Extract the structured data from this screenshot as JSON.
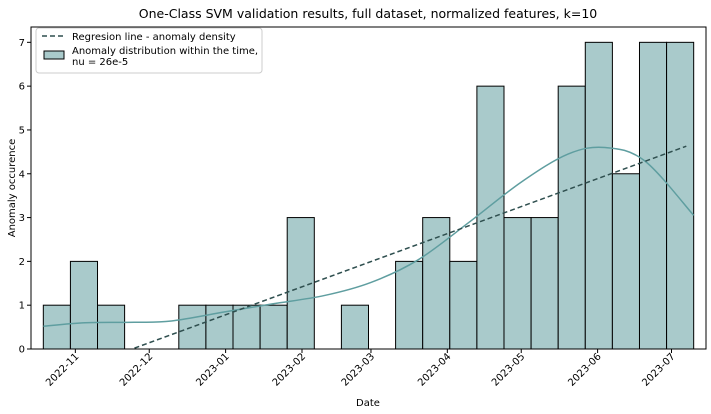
{
  "chart_data": {
    "type": "bar",
    "title": "One-Class SVM validation results, full dataset, normalized features, k=10",
    "xlabel": "Date",
    "ylabel": "Anomaly occurence",
    "ylim": [
      0,
      7.35
    ],
    "yticks": [
      0,
      1,
      2,
      3,
      4,
      5,
      6,
      7
    ],
    "xticks": [
      {
        "date": "2022-11-01",
        "label": "2022-11"
      },
      {
        "date": "2022-12-01",
        "label": "2022-12"
      },
      {
        "date": "2023-01-01",
        "label": "2023-01"
      },
      {
        "date": "2023-02-01",
        "label": "2023-02"
      },
      {
        "date": "2023-03-01",
        "label": "2023-03"
      },
      {
        "date": "2023-04-01",
        "label": "2023-04"
      },
      {
        "date": "2023-05-01",
        "label": "2023-05"
      },
      {
        "date": "2023-06-01",
        "label": "2023-06"
      },
      {
        "date": "2023-07-01",
        "label": "2023-07"
      }
    ],
    "legend_position": "top-left",
    "series": [
      {
        "name": "Anomaly distribution within the time,\nnu = 26e-5",
        "kind": "histogram",
        "color": "#a9cacb",
        "edge_color": "#000000",
        "bins": [
          {
            "start": "2022-10-19",
            "end": "2022-10-30",
            "count": 1
          },
          {
            "start": "2022-10-30",
            "end": "2022-11-10",
            "count": 2
          },
          {
            "start": "2022-11-10",
            "end": "2022-11-21",
            "count": 1
          },
          {
            "start": "2022-11-21",
            "end": "2022-12-02",
            "count": 0
          },
          {
            "start": "2022-12-02",
            "end": "2022-12-13",
            "count": 0
          },
          {
            "start": "2022-12-13",
            "end": "2022-12-24",
            "count": 1
          },
          {
            "start": "2022-12-24",
            "end": "2023-01-04",
            "count": 1
          },
          {
            "start": "2023-01-04",
            "end": "2023-01-15",
            "count": 1
          },
          {
            "start": "2023-01-15",
            "end": "2023-01-26",
            "count": 1
          },
          {
            "start": "2023-01-26",
            "end": "2023-02-06",
            "count": 3
          },
          {
            "start": "2023-02-06",
            "end": "2023-02-17",
            "count": 0
          },
          {
            "start": "2023-02-17",
            "end": "2023-02-28",
            "count": 1
          },
          {
            "start": "2023-02-28",
            "end": "2023-03-11",
            "count": 0
          },
          {
            "start": "2023-03-11",
            "end": "2023-03-22",
            "count": 2
          },
          {
            "start": "2023-03-22",
            "end": "2023-04-02",
            "count": 3
          },
          {
            "start": "2023-04-02",
            "end": "2023-04-13",
            "count": 2
          },
          {
            "start": "2023-04-13",
            "end": "2023-04-24",
            "count": 6
          },
          {
            "start": "2023-04-24",
            "end": "2023-05-05",
            "count": 3
          },
          {
            "start": "2023-05-05",
            "end": "2023-05-16",
            "count": 3
          },
          {
            "start": "2023-05-16",
            "end": "2023-05-27",
            "count": 6
          },
          {
            "start": "2023-05-27",
            "end": "2023-06-07",
            "count": 7
          },
          {
            "start": "2023-06-07",
            "end": "2023-06-18",
            "count": 4
          },
          {
            "start": "2023-06-18",
            "end": "2023-06-29",
            "count": 7
          },
          {
            "start": "2023-06-29",
            "end": "2023-07-10",
            "count": 7
          }
        ]
      },
      {
        "name": "",
        "kind": "kde",
        "color": "#5f9ea0",
        "points": [
          {
            "date": "2022-10-19",
            "y": 0.52
          },
          {
            "date": "2022-11-05",
            "y": 0.6
          },
          {
            "date": "2022-11-25",
            "y": 0.61
          },
          {
            "date": "2022-12-10",
            "y": 0.64
          },
          {
            "date": "2023-01-01",
            "y": 0.85
          },
          {
            "date": "2023-01-20",
            "y": 1.03
          },
          {
            "date": "2023-02-10",
            "y": 1.22
          },
          {
            "date": "2023-03-01",
            "y": 1.52
          },
          {
            "date": "2023-03-20",
            "y": 2.03
          },
          {
            "date": "2023-04-10",
            "y": 2.9
          },
          {
            "date": "2023-05-01",
            "y": 3.81
          },
          {
            "date": "2023-05-20",
            "y": 4.45
          },
          {
            "date": "2023-06-04",
            "y": 4.6
          },
          {
            "date": "2023-06-20",
            "y": 4.3
          },
          {
            "date": "2023-07-10",
            "y": 3.05
          }
        ]
      },
      {
        "name": "Regresion line - anomaly density",
        "kind": "line",
        "style": "dashed",
        "color": "#2f4f4f",
        "points": [
          {
            "date": "2022-11-25",
            "y": 0.02
          },
          {
            "date": "2023-07-07",
            "y": 4.63
          }
        ]
      }
    ]
  }
}
